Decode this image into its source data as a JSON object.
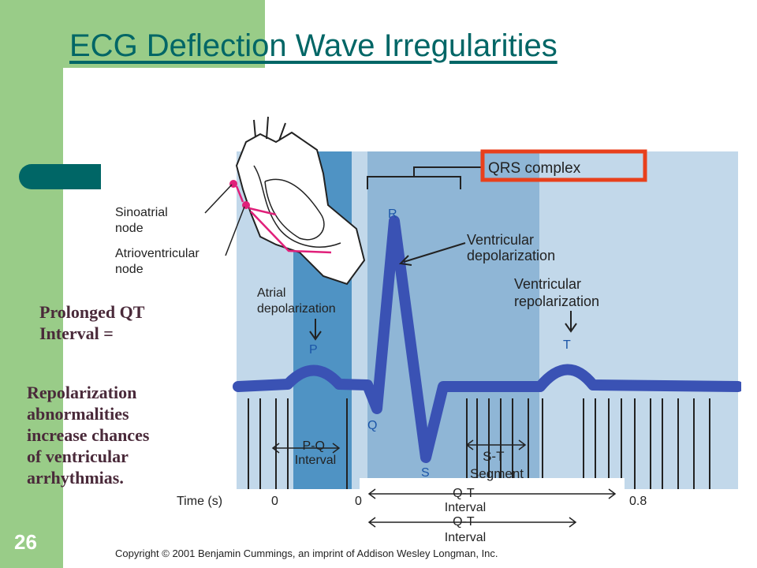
{
  "slide": {
    "title": "ECG Deflection Wave Irregularities",
    "number": "26",
    "text_block_1": [
      "Prolonged QT",
      "Interval ="
    ],
    "text_block_2": [
      "Repolarization",
      "abnormalities",
      "increase chances",
      "of ventricular",
      "arrhythmias."
    ]
  },
  "diagram": {
    "heart_labels": {
      "sinoatrial": [
        "Sinoatrial",
        "node"
      ],
      "atrioventricular": [
        "Atrioventricular",
        "node"
      ]
    },
    "wave_labels": {
      "qrs_complex": "QRS complex",
      "ventricular_depolarization": [
        "Ventricular",
        "depolarization"
      ],
      "ventricular_repolarization": [
        "Ventricular",
        "repolarization"
      ],
      "atrial_depolarization": [
        "Atrial",
        "depolarization"
      ],
      "p": "P",
      "q": "Q",
      "r": "R",
      "s": "S",
      "t": "T"
    },
    "intervals": {
      "pq": [
        "P-Q",
        "Interval"
      ],
      "st": [
        "S-T",
        "Segment"
      ],
      "qt_1": [
        "Q-T",
        "Interval"
      ],
      "qt_2": [
        "Q-T",
        "Interval"
      ]
    },
    "time_axis": {
      "label": "Time (s)",
      "ticks": [
        "0",
        "0",
        "0.8"
      ]
    },
    "copyright": "Copyright © 2001 Benjamin Cummings, an imprint of Addison Wesley Longman, Inc.",
    "colors": {
      "light_band": "#c2d8ea",
      "mid_band": "#8fb6d6",
      "pq_band": "#4f93c4",
      "wave": "#3a52b4",
      "highlight_box": "#e8401c",
      "heart_accent": "#e0207a"
    }
  }
}
